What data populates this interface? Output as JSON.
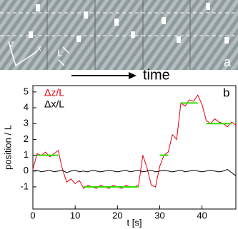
{
  "image_panel": {
    "labels": {
      "z": "z",
      "x": "x",
      "L": "L",
      "time": "time",
      "panel": "a"
    }
  },
  "chart_data": {
    "type": "line",
    "panel_label": "b",
    "xlabel": "t [s]",
    "ylabel": "position / L",
    "xlim": [
      0,
      48
    ],
    "ylim": [
      -2.4,
      5.4
    ],
    "xticks": [
      0,
      10,
      20,
      30,
      40
    ],
    "yticks": [
      -1,
      0,
      1,
      2,
      3,
      4,
      5
    ],
    "x": [
      0,
      1,
      2,
      3,
      4,
      5,
      6,
      7,
      8,
      9,
      10,
      11,
      12,
      13,
      14,
      15,
      16,
      17,
      18,
      19,
      20,
      21,
      22,
      23,
      24,
      25,
      26,
      27,
      28,
      29,
      30,
      31,
      32,
      33,
      34,
      35,
      36,
      37,
      38,
      39,
      40,
      41,
      42,
      43,
      44,
      45,
      46,
      47,
      48
    ],
    "series": [
      {
        "name": "Δz/L",
        "color": "#e8000b",
        "values": [
          0.1,
          1.1,
          1.0,
          1.2,
          0.9,
          1.1,
          1.3,
          0.1,
          -0.7,
          -0.5,
          -0.8,
          -0.6,
          -1.1,
          -0.9,
          -1.0,
          -1.1,
          -0.9,
          -1.0,
          -1.1,
          -0.9,
          -1.0,
          -1.1,
          -0.9,
          -1.0,
          -1.0,
          -0.9,
          1.0,
          0.2,
          -0.9,
          -1.0,
          0.3,
          1.0,
          1.2,
          2.3,
          2.0,
          4.3,
          4.1,
          4.5,
          4.4,
          4.8,
          4.2,
          3.2,
          3.0,
          3.3,
          3.1,
          3.0,
          2.8,
          3.1,
          2.9
        ]
      },
      {
        "name": "Δx/L",
        "color": "#000000",
        "values": [
          0.0,
          0.05,
          -0.05,
          0.0,
          0.05,
          -0.05,
          0.0,
          0.05,
          -0.1,
          0.0,
          0.05,
          -0.05,
          0.0,
          -0.05,
          0.05,
          0.0,
          -0.05,
          0.0,
          0.05,
          0.0,
          -0.05,
          0.0,
          0.05,
          -0.05,
          0.0,
          0.05,
          -0.05,
          0.0,
          0.05,
          -0.05,
          0.0,
          0.05,
          0.0,
          -0.05,
          0.0,
          0.05,
          -0.05,
          0.0,
          0.05,
          0.0,
          -0.05,
          0.0,
          0.05,
          0.0,
          -0.05,
          0.0,
          0.1,
          -0.1,
          -0.3
        ]
      },
      {
        "color": "#33dd00",
        "values": [
          null,
          1.0,
          1.0,
          1.0,
          1.0,
          1.0,
          1.0,
          null,
          null,
          null,
          null,
          null,
          -1.0,
          -1.0,
          -1.0,
          -1.0,
          -1.0,
          -1.0,
          -1.0,
          -1.0,
          -1.0,
          -1.0,
          -1.0,
          -1.0,
          -1.0,
          -1.0,
          null,
          null,
          null,
          null,
          1.0,
          1.0,
          1.0,
          null,
          null,
          4.3,
          4.3,
          4.3,
          4.3,
          4.3,
          null,
          3.0,
          3.0,
          3.0,
          3.0,
          3.0,
          3.0,
          3.0,
          null
        ]
      }
    ]
  }
}
